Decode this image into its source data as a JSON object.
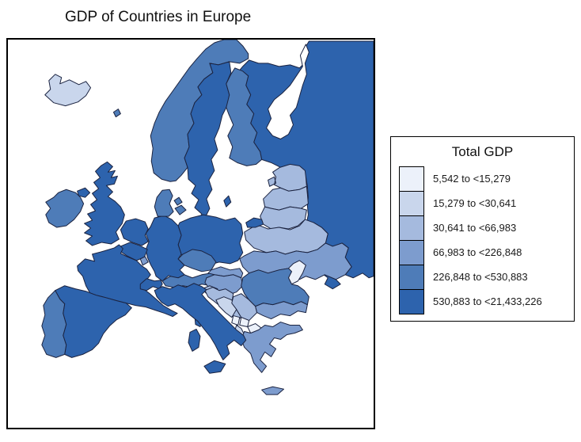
{
  "title": "GDP of Countries in Europe",
  "chart_data": {
    "type": "choropleth",
    "region": "Europe",
    "title": "GDP of Countries in Europe",
    "legend": {
      "title": "Total GDP",
      "position": "right",
      "bins": [
        {
          "label": "5,542 to <15,279",
          "color": "#ECF1FA"
        },
        {
          "label": "15,279 to <30,641",
          "color": "#C9D6EC"
        },
        {
          "label": "30,641 to <66,983",
          "color": "#A5BADE"
        },
        {
          "label": "66,983 to <226,848",
          "color": "#7D9CCE"
        },
        {
          "label": "226,848 to <530,883",
          "color": "#4E7CB8"
        },
        {
          "label": "530,883 to <21,433,226",
          "color": "#2D63AD"
        }
      ]
    },
    "countries": [
      {
        "id": "russia",
        "name": "Russia",
        "bin": 5
      },
      {
        "id": "iceland",
        "name": "Iceland",
        "bin": 1
      },
      {
        "id": "norway",
        "name": "Norway",
        "bin": 4
      },
      {
        "id": "sweden",
        "name": "Sweden",
        "bin": 5
      },
      {
        "id": "finland",
        "name": "Finland",
        "bin": 4
      },
      {
        "id": "estonia",
        "name": "Estonia",
        "bin": 2
      },
      {
        "id": "latvia",
        "name": "Latvia",
        "bin": 2
      },
      {
        "id": "lithuania",
        "name": "Lithuania",
        "bin": 2
      },
      {
        "id": "belarus",
        "name": "Belarus",
        "bin": 2
      },
      {
        "id": "ukraine",
        "name": "Ukraine",
        "bin": 3
      },
      {
        "id": "moldova",
        "name": "Moldova",
        "bin": 0
      },
      {
        "id": "poland",
        "name": "Poland",
        "bin": 5
      },
      {
        "id": "germany",
        "name": "Germany",
        "bin": 5
      },
      {
        "id": "denmark",
        "name": "Denmark",
        "bin": 4
      },
      {
        "id": "netherlands",
        "name": "Netherlands",
        "bin": 5
      },
      {
        "id": "belgium",
        "name": "Belgium",
        "bin": 5
      },
      {
        "id": "luxembourg",
        "name": "Luxembourg",
        "bin": 3
      },
      {
        "id": "united-kingdom",
        "name": "United Kingdom",
        "bin": 5
      },
      {
        "id": "ireland",
        "name": "Ireland",
        "bin": 4
      },
      {
        "id": "france",
        "name": "France",
        "bin": 5
      },
      {
        "id": "switzerland",
        "name": "Switzerland",
        "bin": 5
      },
      {
        "id": "austria",
        "name": "Austria",
        "bin": 4
      },
      {
        "id": "czechia",
        "name": "Czechia",
        "bin": 4
      },
      {
        "id": "slovakia",
        "name": "Slovakia",
        "bin": 3
      },
      {
        "id": "hungary",
        "name": "Hungary",
        "bin": 3
      },
      {
        "id": "slovenia",
        "name": "Slovenia",
        "bin": 2
      },
      {
        "id": "croatia",
        "name": "Croatia",
        "bin": 2
      },
      {
        "id": "bosnia-and-herzegovina",
        "name": "Bosnia and Herzegovina",
        "bin": 1
      },
      {
        "id": "serbia",
        "name": "Serbia",
        "bin": 2
      },
      {
        "id": "montenegro",
        "name": "Montenegro",
        "bin": 0
      },
      {
        "id": "kosovo",
        "name": "Kosovo",
        "bin": 0
      },
      {
        "id": "north-macedonia",
        "name": "North Macedonia",
        "bin": 0
      },
      {
        "id": "albania",
        "name": "Albania",
        "bin": 1
      },
      {
        "id": "greece",
        "name": "Greece",
        "bin": 3
      },
      {
        "id": "bulgaria",
        "name": "Bulgaria",
        "bin": 3
      },
      {
        "id": "romania",
        "name": "Romania",
        "bin": 4
      },
      {
        "id": "italy",
        "name": "Italy",
        "bin": 5
      },
      {
        "id": "spain",
        "name": "Spain",
        "bin": 5
      },
      {
        "id": "portugal",
        "name": "Portugal",
        "bin": 4
      }
    ]
  }
}
